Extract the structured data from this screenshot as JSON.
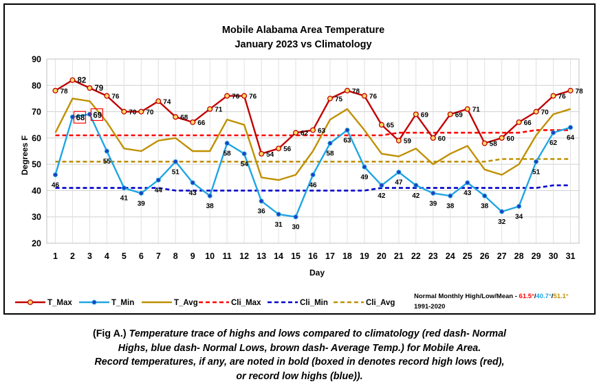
{
  "chart_data": {
    "type": "line",
    "title_line1": "Mobile Alabama Area Temperature",
    "title_line2": "January 2023 vs Climatology",
    "xlabel": "Day",
    "ylabel": "Degrees F",
    "ylim": [
      20,
      90
    ],
    "yticks": [
      20,
      30,
      40,
      50,
      60,
      70,
      80,
      90
    ],
    "x": [
      1,
      2,
      3,
      4,
      5,
      6,
      7,
      8,
      9,
      10,
      11,
      12,
      13,
      14,
      15,
      16,
      17,
      18,
      19,
      20,
      21,
      22,
      23,
      24,
      25,
      26,
      27,
      28,
      29,
      30,
      31
    ],
    "grid": true,
    "legend_position": "bottom",
    "series": [
      {
        "name": "T_Max",
        "color": "#c00000",
        "style": "solid",
        "marker": "yellow-circle",
        "values": [
          78,
          82,
          79,
          76,
          70,
          70,
          74,
          68,
          66,
          71,
          76,
          76,
          54,
          56,
          62,
          63,
          75,
          78,
          76,
          65,
          59,
          69,
          60,
          69,
          71,
          58,
          60,
          66,
          70,
          76,
          78
        ]
      },
      {
        "name": "T_Min",
        "color": "#1ea5e3",
        "style": "solid",
        "marker": "blue-dot",
        "values": [
          46,
          68,
          69,
          55,
          41,
          39,
          44,
          51,
          43,
          38,
          58,
          54,
          36,
          31,
          30,
          46,
          58,
          63,
          49,
          42,
          47,
          42,
          39,
          38,
          43,
          38,
          32,
          34,
          51,
          62,
          64
        ]
      },
      {
        "name": "T_Avg",
        "color": "#bf9000",
        "style": "solid",
        "marker": "none",
        "values": [
          62,
          75,
          74,
          66,
          56,
          55,
          59,
          60,
          55,
          55,
          67,
          65,
          45,
          44,
          46,
          55,
          67,
          71,
          63,
          54,
          53,
          56,
          50,
          54,
          57,
          48,
          46,
          50,
          61,
          69,
          71
        ]
      },
      {
        "name": "Cli_Max",
        "color": "#ff0000",
        "style": "dashed",
        "marker": "none",
        "values": [
          61,
          61,
          61,
          61,
          61,
          61,
          61,
          61,
          61,
          61,
          61,
          61,
          61,
          61,
          61,
          61,
          61,
          61,
          61,
          61,
          62,
          62,
          62,
          62,
          62,
          62,
          62,
          62,
          63,
          63,
          63
        ]
      },
      {
        "name": "Cli_Min",
        "color": "#0000cc",
        "style": "dashed",
        "marker": "none",
        "values": [
          41,
          41,
          41,
          41,
          41,
          41,
          41,
          40,
          40,
          40,
          40,
          40,
          40,
          40,
          40,
          40,
          40,
          40,
          40,
          41,
          41,
          41,
          41,
          41,
          41,
          41,
          41,
          41,
          41,
          42,
          42
        ]
      },
      {
        "name": "Cli_Avg",
        "color": "#bf9000",
        "style": "dashed",
        "marker": "none",
        "values": [
          51,
          51,
          51,
          51,
          51,
          51,
          51,
          51,
          51,
          51,
          51,
          51,
          51,
          51,
          51,
          51,
          51,
          51,
          51,
          51,
          51,
          51,
          51,
          51,
          51,
          51,
          52,
          52,
          52,
          52,
          52
        ]
      }
    ],
    "highlighted_labels": [
      {
        "series": "T_Max",
        "day": 2,
        "value": 82,
        "color": "#ff0000",
        "boxed": false
      },
      {
        "series": "T_Max",
        "day": 3,
        "value": 79,
        "color": "#ff0000",
        "boxed": false
      },
      {
        "series": "T_Min",
        "day": 2,
        "value": 68,
        "color": "#1f5fff",
        "boxed": true
      },
      {
        "series": "T_Min",
        "day": 3,
        "value": 69,
        "color": "#1f5fff",
        "boxed": true
      }
    ],
    "normals_note": {
      "prefix": "Normal Monthly High/Low/Mean - ",
      "high": "61.5°",
      "low": "40.7°",
      "mean": "51.1°",
      "separator": "/",
      "high_color": "#ff0000",
      "low_color": "#1ea5e3",
      "mean_color": "#bf9000",
      "period": "1991-2020"
    }
  },
  "caption": {
    "fig_label": "(Fig A.)",
    "line1": " Temperature trace of highs and lows compared to climatology (red dash- Normal",
    "line2": "Highs, blue dash- Normal Lows, brown dash- Average Temp.) for Mobile Area.",
    "line3": "Record temperatures, if any, are noted in bold (boxed in denotes record high lows (red),",
    "line4": "or record low highs (blue))."
  }
}
